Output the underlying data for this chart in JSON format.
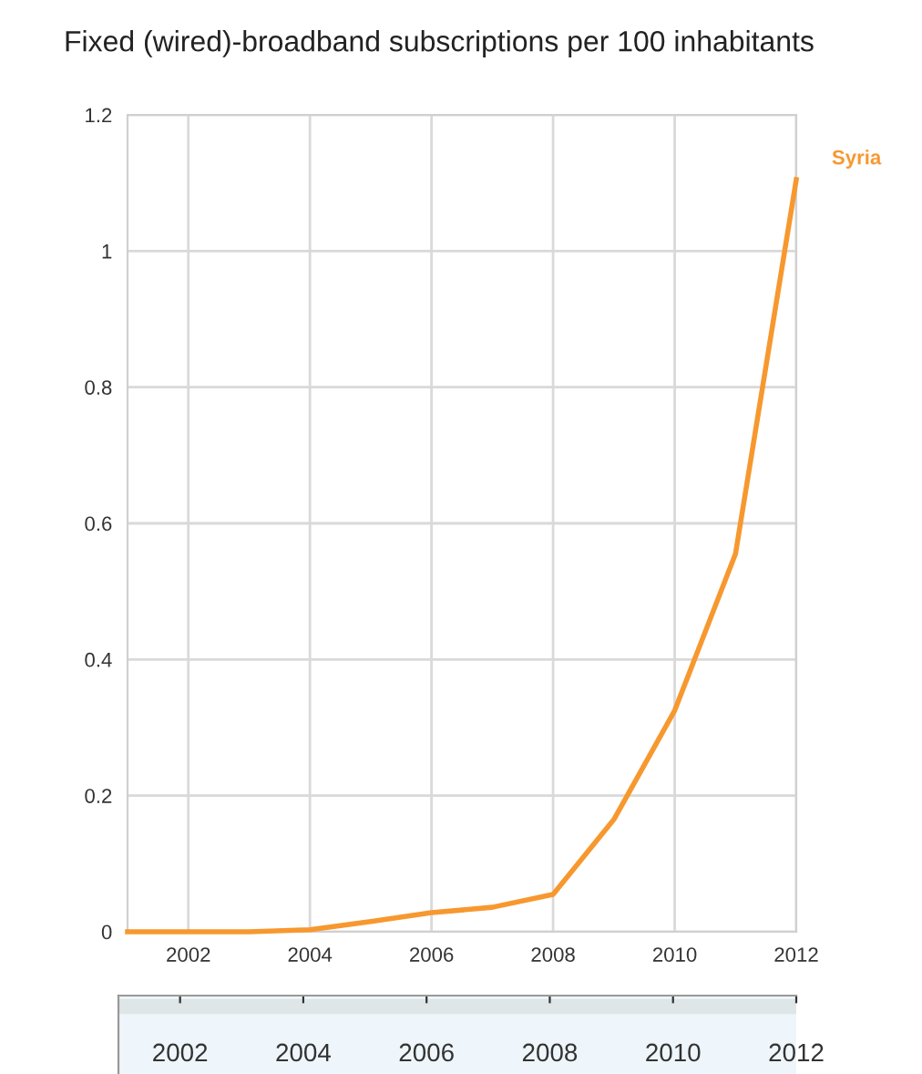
{
  "chart_data": {
    "type": "line",
    "title": "Fixed (wired)-broadband subscriptions per 100 inhabitants",
    "x": [
      2001,
      2002,
      2003,
      2004,
      2005,
      2006,
      2007,
      2008,
      2009,
      2010,
      2011,
      2012
    ],
    "series": [
      {
        "name": "Syria",
        "color": "#f7982f",
        "values": [
          0,
          0,
          0,
          0.003,
          0.015,
          0.028,
          0.036,
          0.055,
          0.165,
          0.325,
          0.555,
          1.105
        ]
      }
    ],
    "xlim": [
      2001,
      2012
    ],
    "xticks": [
      2002,
      2004,
      2006,
      2008,
      2010,
      2012
    ],
    "x2lim": [
      2001,
      2012
    ],
    "x2ticks": [
      2002,
      2004,
      2006,
      2008,
      2010,
      2012
    ],
    "ylim": [
      0,
      1.2
    ],
    "yticks": [
      0,
      0.2,
      0.4,
      0.6,
      0.8,
      1,
      1.2
    ],
    "grid": true,
    "legend": false,
    "marker": "none",
    "line_style": "solid"
  }
}
